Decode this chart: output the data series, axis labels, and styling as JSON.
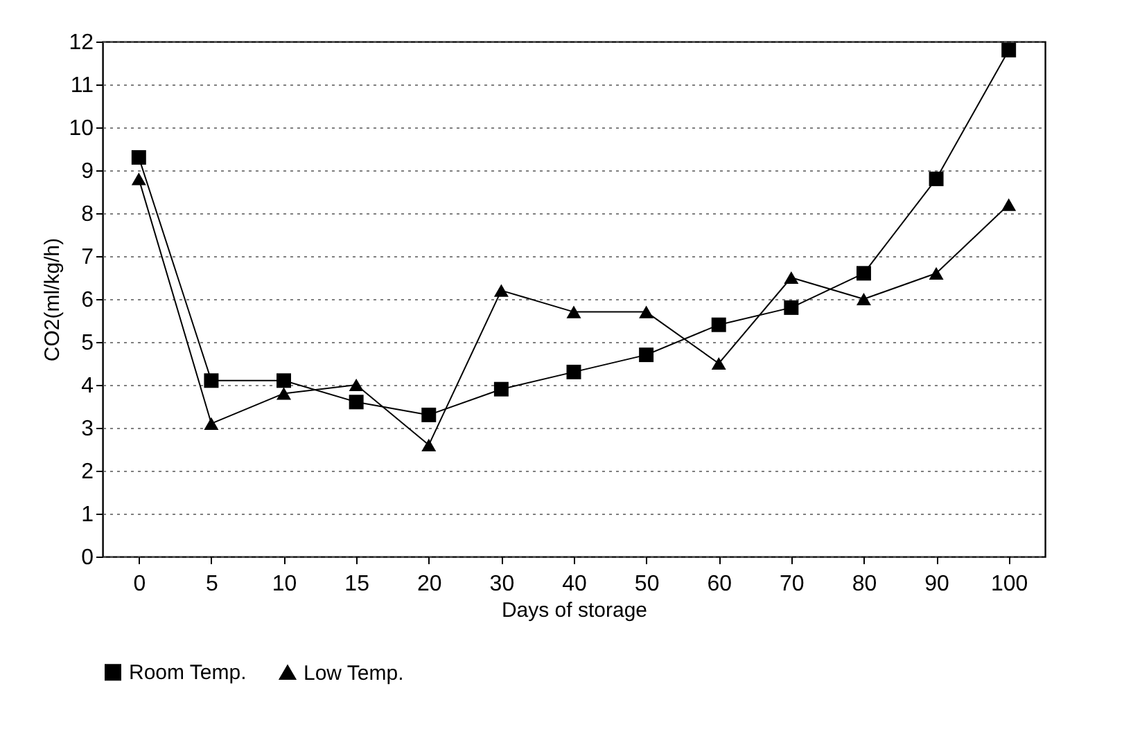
{
  "chart_data": {
    "type": "line",
    "xlabel": "Days of storage",
    "ylabel": "CO2(ml/kg/h)",
    "categories": [
      "0",
      "5",
      "10",
      "15",
      "20",
      "30",
      "40",
      "50",
      "60",
      "70",
      "80",
      "90",
      "100"
    ],
    "series": [
      {
        "name": "Room Temp.",
        "color": "#000000",
        "marker": "square",
        "values": [
          9.3,
          4.1,
          4.1,
          3.6,
          3.3,
          3.9,
          4.3,
          4.7,
          5.4,
          5.8,
          6.6,
          8.8,
          11.8
        ]
      },
      {
        "name": "Low Temp.",
        "color": "#000000",
        "marker": "triangle",
        "values": [
          8.8,
          3.1,
          3.8,
          4.0,
          2.6,
          6.2,
          5.7,
          5.7,
          4.5,
          6.5,
          6.0,
          6.6,
          8.2
        ]
      }
    ],
    "ylim": [
      0,
      12
    ],
    "yticks": [
      0,
      1,
      2,
      3,
      4,
      5,
      6,
      7,
      8,
      9,
      10,
      11,
      12
    ],
    "grid": "y",
    "legend": "bottom",
    "line_style": "solid"
  }
}
